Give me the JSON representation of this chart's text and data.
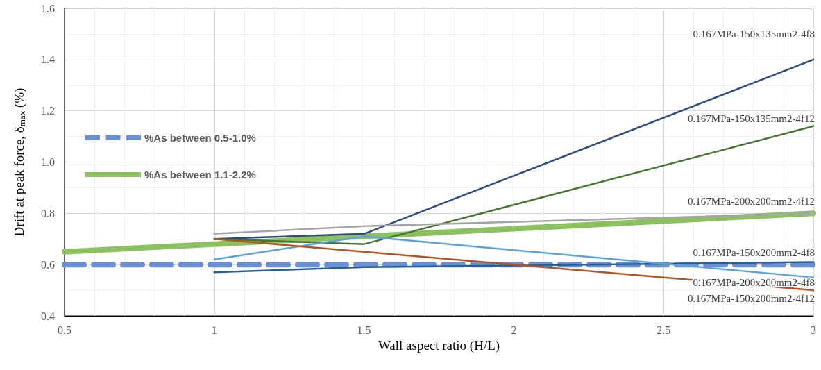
{
  "chart_data": {
    "type": "line",
    "xlabel": "Wall aspect ratio (H/L)",
    "ylabel": "Drift at peak force, δ$_{max}$ (%)",
    "x": [
      0.5,
      1,
      1.5,
      3
    ],
    "series": [
      {
        "name": "0.167MPa-150x135mm2-4f8",
        "color": "#2f4b7c",
        "values": [
          null,
          0.7,
          0.72,
          1.4
        ]
      },
      {
        "name": "0.167MPa-150x135mm2-4f12",
        "color": "#4a7535",
        "values": [
          null,
          0.7,
          0.68,
          1.14
        ]
      },
      {
        "name": "0.167MPa-200x200mm2-4f12",
        "color": "#a5a5a5",
        "values": [
          null,
          0.72,
          0.75,
          0.8
        ]
      },
      {
        "name": "0.167MPa-150x200mm2-4f8",
        "color": "#26609a",
        "values": [
          null,
          0.57,
          0.59,
          0.61
        ]
      },
      {
        "name": "0.167MPa-200x200mm2-4f8",
        "color": "#5ba3dc",
        "values": [
          null,
          0.62,
          0.71,
          0.55
        ]
      },
      {
        "name": "0.167MPa-150x200mm2-4f12",
        "color": "#b5541c",
        "values": [
          null,
          0.7,
          0.65,
          0.5
        ]
      },
      {
        "name": "%As between 0.5-1.0%",
        "color": "#6b8fd4",
        "values": [
          0.6,
          0.6,
          0.6,
          0.6
        ],
        "line_style": "dashed"
      },
      {
        "name": "%As between 1.1-2.2%",
        "color": "#8cc15f",
        "values": [
          0.65,
          0.68,
          0.71,
          0.8
        ],
        "line_style": "solid"
      }
    ],
    "xlim": [
      0.5,
      3
    ],
    "xticks": [
      0.5,
      1,
      1.5,
      2,
      2.5,
      3
    ],
    "ylim": [
      0.4,
      1.6
    ],
    "yticks": [
      0.4,
      0.6,
      0.8,
      {
        "value": 1,
        "label": "1.0"
      },
      1.2,
      1.4,
      1.6
    ],
    "grid": true,
    "legend": "left",
    "marker": "none"
  }
}
